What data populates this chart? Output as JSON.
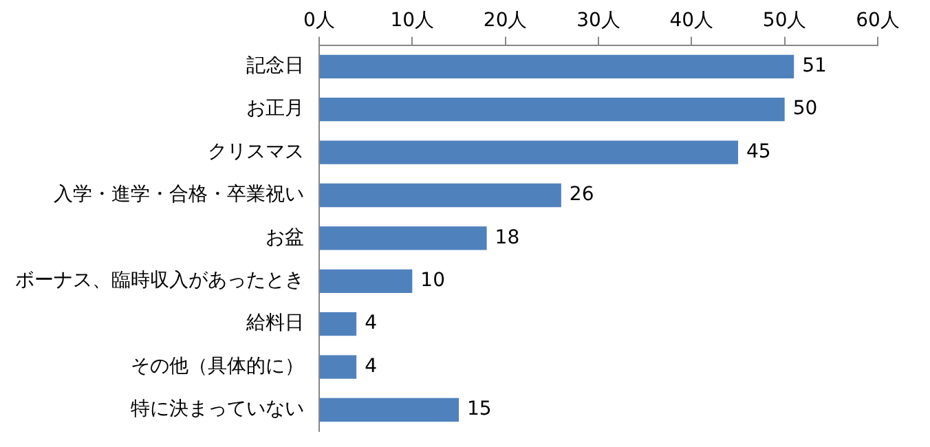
{
  "chart_data": {
    "type": "bar",
    "orientation": "horizontal",
    "categories": [
      "記念日",
      "お正月",
      "クリスマス",
      "入学・進学・合格・卒業祝い",
      "お盆",
      "ボーナス、臨時収入があったとき",
      "給料日",
      "その他（具体的に）",
      "特に決まっていない"
    ],
    "values": [
      51,
      50,
      45,
      26,
      18,
      10,
      4,
      4,
      15
    ],
    "color": "#4f81bd",
    "xlim": [
      0,
      60
    ],
    "xticks": [
      {
        "value": 0,
        "label": "0人"
      },
      {
        "value": 10,
        "label": "10人"
      },
      {
        "value": 20,
        "label": "20人"
      },
      {
        "value": 30,
        "label": "30人"
      },
      {
        "value": 40,
        "label": "40人"
      },
      {
        "value": 50,
        "label": "50人"
      },
      {
        "value": 60,
        "label": "60人"
      }
    ],
    "grid": false,
    "legend": false,
    "data_labels": true
  }
}
